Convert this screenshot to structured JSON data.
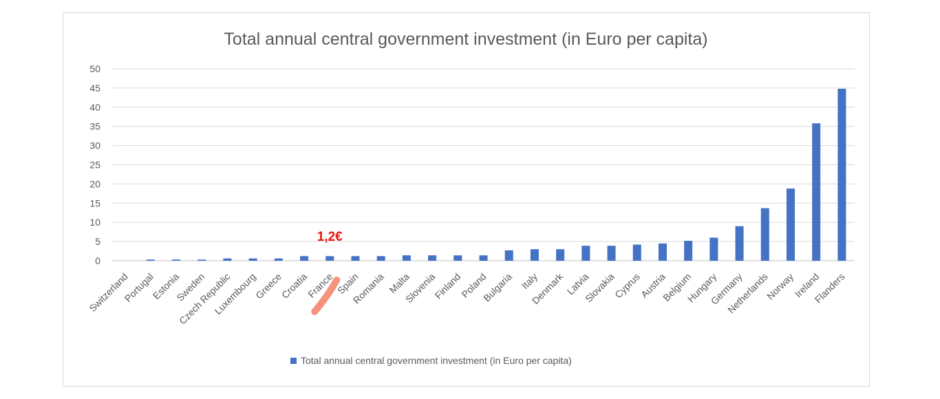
{
  "chart_data": {
    "type": "bar",
    "title": "Total annual central government investment (in Euro per capita)",
    "categories": [
      "Switzerland",
      "Portugal",
      "Estonia",
      "Sweden",
      "Czech Republic",
      "Luxembourg",
      "Greece",
      "Croatia",
      "France",
      "Spain",
      "Romania",
      "Malta",
      "Slovenia",
      "Finland",
      "Poland",
      "Bulgaria",
      "Italy",
      "Denmark",
      "Latvia",
      "Slovakia",
      "Cyprus",
      "Austria",
      "Belgium",
      "Hungary",
      "Germany",
      "Netherlands",
      "Norway",
      "Ireland",
      "Flanders"
    ],
    "series": [
      {
        "name": "Total annual central government investment (in Euro per capita)",
        "values": [
          0,
          0.3,
          0.3,
          0.3,
          0.6,
          0.6,
          0.6,
          1.2,
          1.2,
          1.2,
          1.2,
          1.4,
          1.4,
          1.4,
          1.4,
          2.7,
          3.0,
          3.0,
          3.9,
          3.9,
          4.2,
          4.5,
          5.2,
          6.0,
          9.0,
          13.7,
          18.8,
          35.8,
          44.8
        ]
      }
    ],
    "ylim": [
      0,
      50
    ],
    "yticks": [
      0,
      5,
      10,
      15,
      20,
      25,
      30,
      35,
      40,
      45,
      50
    ],
    "grid": true,
    "legend": "bottom",
    "bar_color": "#4472c4",
    "annotation": {
      "text": "1,2€",
      "target": "France",
      "color": "#e8140c",
      "highlight_color": "#f4876f"
    }
  }
}
